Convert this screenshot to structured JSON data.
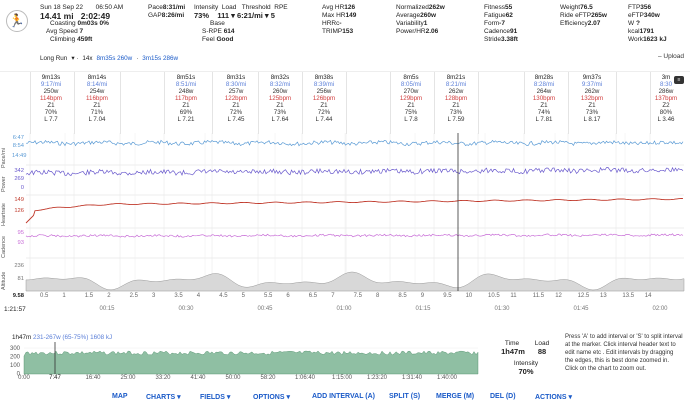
{
  "header": {
    "date": "Sun 18 Sep 22",
    "time": "06:50 AM",
    "distance": "14.41 mi",
    "moving_time": "2:02:49",
    "coasting_label": "Coasting",
    "coasting_value": "0m03s 0%",
    "avg_speed_label": "Avg Speed",
    "avg_speed_value": "7",
    "climbing_label": "Climbing",
    "climbing_value": "459ft",
    "col2": [
      {
        "k": "Pace",
        "v": "8:31/mi"
      },
      {
        "k": "GAP",
        "v": "8:26/mi"
      }
    ],
    "col3": {
      "intensity_label": "Intensity",
      "intensity_value": "73%",
      "load_label": "Load",
      "load_value": "111",
      "threshold_label": "Threshold",
      "threshold_value": "6:21/mi",
      "rpe_label": "RPE",
      "rpe_value": "5",
      "base_label": "Base",
      "srpe_label": "S-RPE",
      "srpe_value": "614",
      "feel_label": "Feel",
      "feel_value": "Good"
    },
    "col4": [
      {
        "k": "Avg HR",
        "v": "126"
      },
      {
        "k": "Max HR",
        "v": "149"
      },
      {
        "k": "HRRc",
        "v": "-"
      },
      {
        "k": "TRIMP",
        "v": "153"
      }
    ],
    "col5": [
      {
        "k": "Normalized",
        "v": "262w"
      },
      {
        "k": "Average",
        "v": "260w"
      },
      {
        "k": "Variability",
        "v": "1"
      },
      {
        "k": "Power/HR",
        "v": "2.06"
      }
    ],
    "col6": [
      {
        "k": "Fitness",
        "v": "55"
      },
      {
        "k": "Fatigue",
        "v": "62"
      },
      {
        "k": "Form",
        "v": "-7"
      },
      {
        "k": "Cadence",
        "v": "91"
      },
      {
        "k": "Stride",
        "v": "3.38ft"
      }
    ],
    "col7": [
      {
        "k": "Weight",
        "v": "76.5"
      },
      {
        "k": "Ride eFTP",
        "v": "265w"
      },
      {
        "k": "Efficiency",
        "v": "2.07"
      }
    ],
    "col8": [
      {
        "k": "FTP",
        "v": "356"
      },
      {
        "k": "eFTP",
        "v": "340w"
      },
      {
        "k": "W ",
        "v": "? "
      },
      {
        "k": "kcal",
        "v": "1791"
      },
      {
        "k": "Work",
        "v": "1623 kJ"
      }
    ],
    "long_run_label": "Long Run",
    "lr_extra": "14x",
    "lr_interval1": "8m35s 260w",
    "lr_interval2": "3m15s 286w",
    "upload_label": "Upload"
  },
  "intervals": [
    {
      "dur": "9m13s",
      "pace": "9:17/mi",
      "power": "250w",
      "hr": "114bpm",
      "zone": "Z1",
      "pct": "70%",
      "lap": "L 7.7"
    },
    {
      "dur": "8m14s",
      "pace": "8:14/mi",
      "power": "254w",
      "hr": "116bpm",
      "zone": "Z1",
      "pct": "71%",
      "lap": "L 7.04"
    },
    {
      "dur": "8m51s",
      "pace": "8:51/mi",
      "power": "248w",
      "hr": "117bpm",
      "zone": "Z1",
      "pct": "69%",
      "lap": "L 7.21"
    },
    {
      "dur": "8m31s",
      "pace": "8:30/mi",
      "power": "257w",
      "hr": "122bpm",
      "zone": "Z1",
      "pct": "72%",
      "lap": "L 7.45"
    },
    {
      "dur": "8m32s",
      "pace": "8:32/mi",
      "power": "260w",
      "hr": "125bpm",
      "zone": "Z1",
      "pct": "73%",
      "lap": "L 7.64"
    },
    {
      "dur": "8m38s",
      "pace": "8:39/mi",
      "power": "256w",
      "hr": "126bpm",
      "zone": "Z1",
      "pct": "72%",
      "lap": "L 7.44"
    },
    {
      "dur": "8m5s",
      "pace": "8:05/mi",
      "power": "270w",
      "hr": "129bpm",
      "zone": "Z1",
      "pct": "75%",
      "lap": "L 7.8"
    },
    {
      "dur": "8m21s",
      "pace": "8:21/mi",
      "power": "262w",
      "hr": "128bpm",
      "zone": "Z1",
      "pct": "73%",
      "lap": "L 7.59"
    },
    {
      "dur": "8m28s",
      "pace": "8:28/mi",
      "power": "264w",
      "hr": "130bpm",
      "zone": "Z1",
      "pct": "74%",
      "lap": "L 7.81"
    },
    {
      "dur": "9m37s",
      "pace": "9:37/mi",
      "power": "262w",
      "hr": "132bpm",
      "zone": "Z1",
      "pct": "73%",
      "lap": "L 8.17"
    },
    {
      "dur": "3m",
      "pace": "8:30",
      "power": "286w",
      "hr": "137bpm",
      "zone": "Z2",
      "pct": "80%",
      "lap": "L 3.46"
    }
  ],
  "charts": {
    "pace_label": "Pace/mi",
    "pace_t1": "6:47",
    "pace_t2": "8:54",
    "pace_t3": "14:49",
    "power_label": "Power",
    "power_t1": "342",
    "power_t2": "269",
    "power_t3": "0",
    "hr_label": "Heartrate",
    "hr_t1": "149",
    "hr_t2": "126",
    "cad_label": "Cadence",
    "cad_t1": "95",
    "cad_t2": "93",
    "alt_label": "Altitude",
    "alt_t1": "236",
    "alt_t2": "81",
    "dist_start": "9.58",
    "dist_ticks": [
      "0.5",
      "1",
      "1.5",
      "2",
      "2.5",
      "3",
      "3.5",
      "4",
      "4.5",
      "5",
      "5.5",
      "6",
      "6.5",
      "7",
      "7.5",
      "8",
      "8.5",
      "9",
      "9.5",
      "10",
      "10.5",
      "11",
      "11.5",
      "12",
      "12.5",
      "13",
      "13.5",
      "14"
    ],
    "time_start": "1:21:57",
    "time_ticks": [
      "00:15",
      "00:30",
      "00:45",
      "01:00",
      "01:15",
      "01:30",
      "01:45",
      "02:00"
    ]
  },
  "overview": {
    "duration": "1h47m",
    "selection": "231-267w (65-75%) 1608 kJ",
    "y_ticks": [
      "300",
      "200",
      "100",
      "0"
    ],
    "x_ticks": [
      "0:00",
      "7:47",
      "16:40",
      "25:00",
      "33:20",
      "41:40",
      "50:00",
      "58:20",
      "1:06:40",
      "1:15:00",
      "1:23:20",
      "1:31:40",
      "1:40:00"
    ]
  },
  "stats": {
    "time_label": "Time",
    "time_value": "1h47m",
    "load_label": "Load",
    "load_value": "88",
    "intensity_label": "Intensity",
    "intensity_value": "70%"
  },
  "help_text": "Press 'A' to add interval or 'S' to split interval at the marker. Click interval header text to edit name etc . Edit intervals by dragging the edges, this is best done zoomed in. Click on the chart to zoom out.",
  "menu": {
    "map": "MAP",
    "charts": "CHARTS ▾",
    "fields": "FIELDS ▾",
    "options": "OPTIONS ▾",
    "add_interval": "ADD INTERVAL (A)",
    "split": "SPLIT (S)",
    "merge": "MERGE (M)",
    "del": "DEL (D)",
    "actions": "ACTIONS ▾"
  },
  "colors": {
    "pace": "#5b9bd5",
    "power": "#6a5acd",
    "hr": "#c0392b",
    "cadence": "#c86dd7",
    "altitude": "#999999",
    "overview_fill": "#8fbfa3",
    "link": "#1a5ac8"
  }
}
